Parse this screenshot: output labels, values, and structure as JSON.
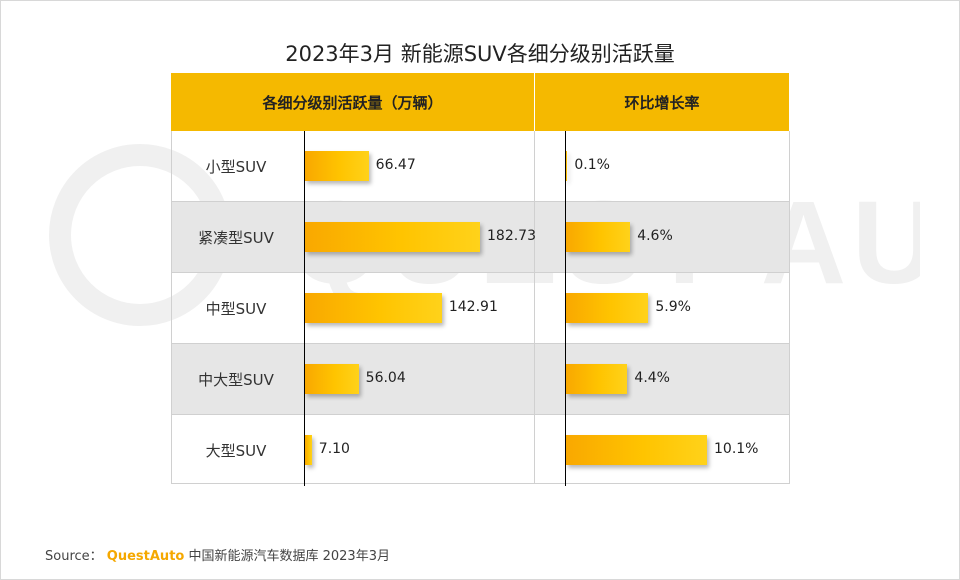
{
  "chart_data": {
    "type": "bar",
    "title": "2023年3月 新能源SUV各细分级别活跃量",
    "categories": [
      "小型SUV",
      "紧凑型SUV",
      "中型SUV",
      "中大型SUV",
      "大型SUV"
    ],
    "series": [
      {
        "name": "各细分级别活跃量（万辆）",
        "values": [
          66.47,
          182.73,
          142.91,
          56.04,
          7.1
        ],
        "labels": [
          "66.47",
          "182.73",
          "142.91",
          "56.04",
          "7.10"
        ]
      },
      {
        "name": "环比增长率",
        "values": [
          0.1,
          4.6,
          5.9,
          4.4,
          10.1
        ],
        "labels": [
          "0.1%",
          "4.6%",
          "5.9%",
          "4.4%",
          "10.1%"
        ]
      }
    ],
    "xlim_series1": [
      0,
      182.73
    ],
    "xlim_series2": [
      0,
      10.1
    ]
  },
  "watermark": "QUEST AUTO",
  "source": {
    "prefix": "Source：",
    "brand": "QuestAuto",
    "text": "中国新能源汽车数据库 2023年3月"
  },
  "colors": {
    "header": "#f5b900",
    "bar": "#ffc400",
    "row_shade": "#e6e6e6",
    "brand": "#f5a800"
  }
}
